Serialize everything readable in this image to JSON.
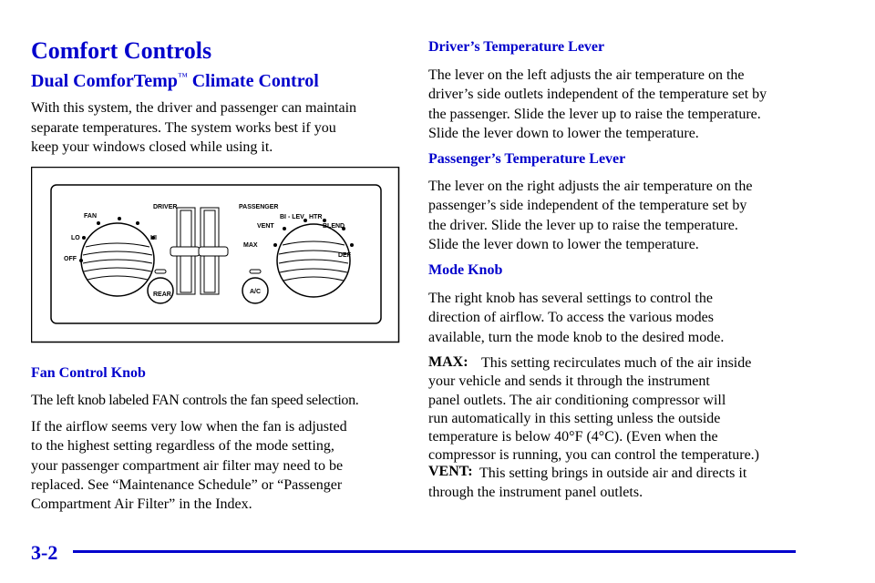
{
  "page": {
    "left": {
      "title": "Comfort Controls",
      "subtitle": "Dual ComforTemp",
      "subtitle_mark": "™",
      "subtitle_rest": "Climate Control",
      "intro": [
        "With this system, the driver and passenger can maintain",
        "separate temperatures. The system works best if you",
        "keep your windows closed while using it."
      ],
      "figure": {
        "labels": {
          "fan": "FAN",
          "driver": "DRIVER",
          "passenger": "PASSENGER",
          "lo": "LO",
          "hi": "HI",
          "off": "OFF",
          "bilev": "BI - LEV",
          "htr": "HTR",
          "vent": "VENT",
          "blend": "BLEND",
          "max": "MAX",
          "def": "DEF",
          "rear": "REAR",
          "ac": "A/C"
        }
      },
      "fan_heading": "Fan Control Knob",
      "fan_text": [
        "The left knob labeled FAN controls the fan speed selection."
      ],
      "airflow": [
        "If the airflow seems very low when the fan is adjusted",
        "to the highest setting regardless of the mode setting,",
        "your passenger compartment air filter may need to be",
        "replaced. See “Maintenance Schedule” or “Passenger",
        "Compartment Air Filter” in the Index."
      ]
    },
    "right": {
      "driver_heading": "Driver’s Temperature Lever",
      "driver_text": [
        "The lever on the left adjusts the air temperature on the",
        "driver’s side outlets independent of the temperature set by",
        "the passenger. Slide the lever up to raise the temperature.",
        "Slide the lever down to lower the temperature."
      ],
      "passenger_heading": "Passenger’s Temperature Lever",
      "passenger_text": [
        "The lever on the right adjusts the air temperature on the",
        "passenger’s side independent of the temperature set by",
        "the driver. Slide the lever up to raise the temperature.",
        "Slide the lever down to lower the temperature."
      ],
      "mode_heading": "Mode Knob",
      "mode_text": [
        "The right knob has several settings to control the",
        "direction of airflow. To access the various modes",
        "available, turn the mode knob to the desired mode."
      ],
      "max_label": "MAX:",
      "max_text": [
        "This setting recirculates much of the air inside",
        "your vehicle and sends it through the instrument",
        "panel outlets. The air conditioning compressor will",
        "run automatically in this setting unless the outside",
        "temperature is below 40°F (4°C). (Even when the",
        "compressor is running, you can control the temperature.)"
      ],
      "vent_label": "VENT:",
      "vent_text": [
        "This setting brings in outside air and directs it",
        "through the instrument panel outlets."
      ]
    },
    "footer": {
      "page_number": "3-2"
    }
  }
}
